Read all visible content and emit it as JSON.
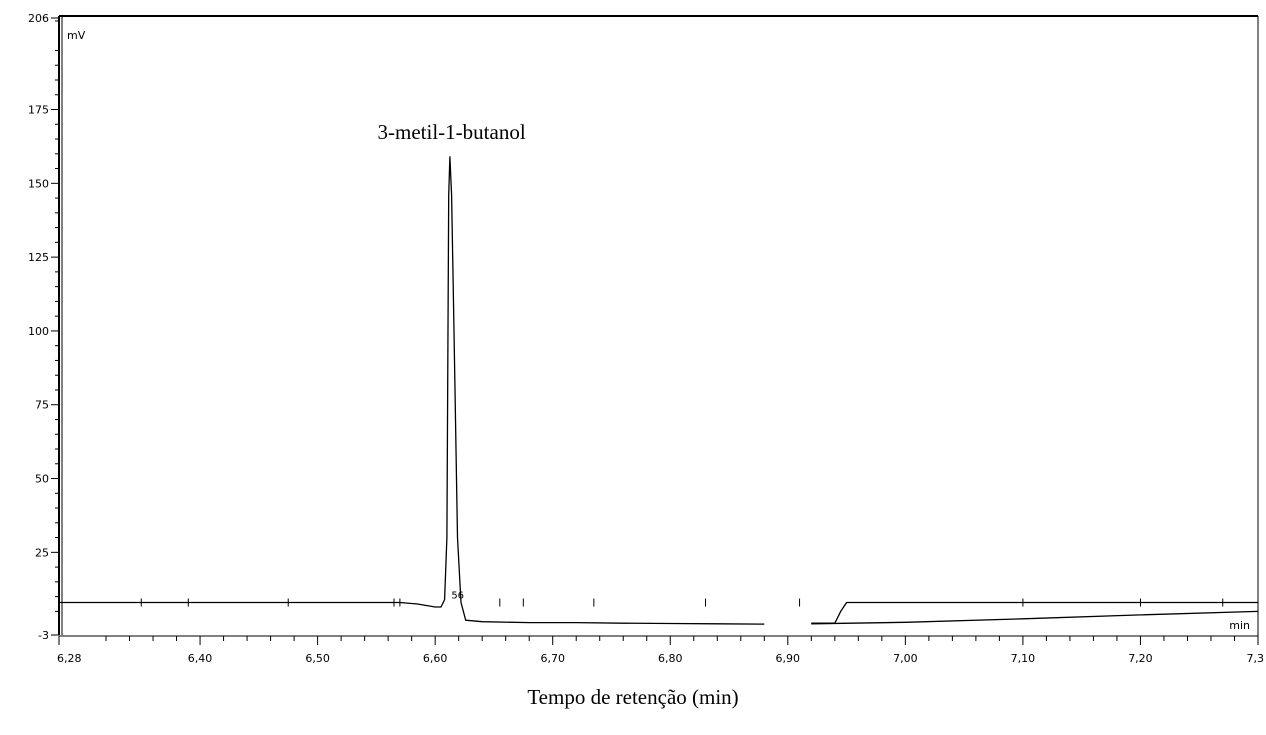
{
  "chart_data": {
    "type": "line",
    "title": "",
    "xlabel": "Tempo de retenção (min)",
    "ylabel": "mV",
    "x_unit": "min",
    "xlim": [
      6.28,
      7.3
    ],
    "ylim": [
      -3,
      206
    ],
    "x_ticks": [
      {
        "value": 6.28,
        "label": "6,28"
      },
      {
        "value": 6.4,
        "label": "6,40"
      },
      {
        "value": 6.5,
        "label": "6,50"
      },
      {
        "value": 6.6,
        "label": "6,60"
      },
      {
        "value": 6.7,
        "label": "6,70"
      },
      {
        "value": 6.8,
        "label": "6,80"
      },
      {
        "value": 6.9,
        "label": "6,90"
      },
      {
        "value": 7.0,
        "label": "7,00"
      },
      {
        "value": 7.1,
        "label": "7,10"
      },
      {
        "value": 7.2,
        "label": "7,20"
      },
      {
        "value": 7.3,
        "label": "7,3"
      }
    ],
    "y_ticks": [
      {
        "value": 206,
        "label": "206"
      },
      {
        "value": 175,
        "label": "175"
      },
      {
        "value": 150,
        "label": "150"
      },
      {
        "value": 125,
        "label": "125"
      },
      {
        "value": 100,
        "label": "100"
      },
      {
        "value": 75,
        "label": "75"
      },
      {
        "value": 50,
        "label": "50"
      },
      {
        "value": 25,
        "label": "25"
      },
      {
        "value": -3,
        "label": "-3"
      }
    ],
    "series": [
      {
        "x": [
          6.28,
          6.4,
          6.5,
          6.57,
          6.585,
          6.6,
          6.605,
          6.608,
          6.61,
          6.6115,
          6.6125,
          6.614,
          6.616,
          6.619,
          6.622,
          6.626,
          6.64,
          6.68,
          6.72,
          6.76,
          6.8,
          6.84,
          6.88
        ],
        "y": [
          8,
          8,
          8,
          8,
          7.5,
          6.5,
          6.5,
          9,
          30,
          146,
          159,
          146,
          100,
          30,
          8,
          2,
          1.5,
          1.2,
          1.2,
          1.0,
          0.9,
          0.8,
          0.7
        ]
      },
      {
        "x": [
          6.92,
          6.94,
          6.945,
          6.95,
          7.0,
          7.1,
          7.2,
          7.3
        ],
        "y": [
          1.0,
          1.0,
          5,
          8,
          8,
          8,
          8,
          8
        ]
      },
      {
        "x": [
          6.92,
          7.0,
          7.1,
          7.2,
          7.3
        ],
        "y": [
          0.8,
          1.3,
          2.5,
          3.8,
          5.0
        ]
      }
    ],
    "annotations": [
      {
        "text": "3-metil-1-butanol",
        "x": 6.614,
        "y": 159
      },
      {
        "text": "56",
        "x": 6.618,
        "y": 9
      }
    ]
  }
}
